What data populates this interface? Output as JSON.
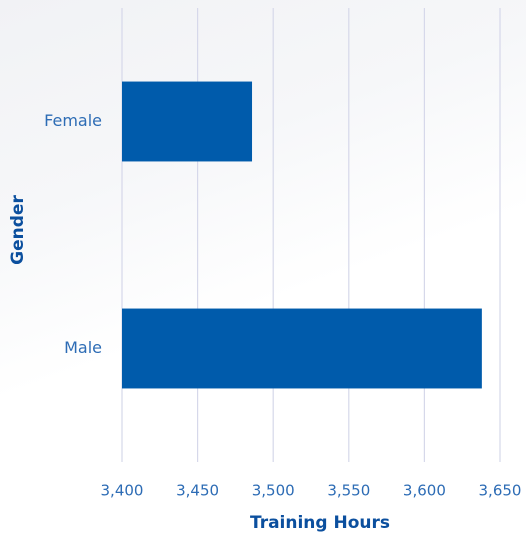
{
  "chart_data": {
    "type": "bar",
    "orientation": "horizontal",
    "x_label": "Training Hours",
    "y_label": "Gender",
    "categories": [
      "Female",
      "Male"
    ],
    "values": [
      3486,
      3638
    ],
    "color": "#005bab",
    "xlim": [
      3400,
      3650
    ],
    "xticks": [
      {
        "value": 3400,
        "label": "3,400"
      },
      {
        "value": 3450,
        "label": "3,450"
      },
      {
        "value": 3500,
        "label": "3,500"
      },
      {
        "value": 3550,
        "label": "3,550"
      },
      {
        "value": 3600,
        "label": "3,600"
      },
      {
        "value": 3650,
        "label": "3,650"
      }
    ],
    "grid": true
  }
}
